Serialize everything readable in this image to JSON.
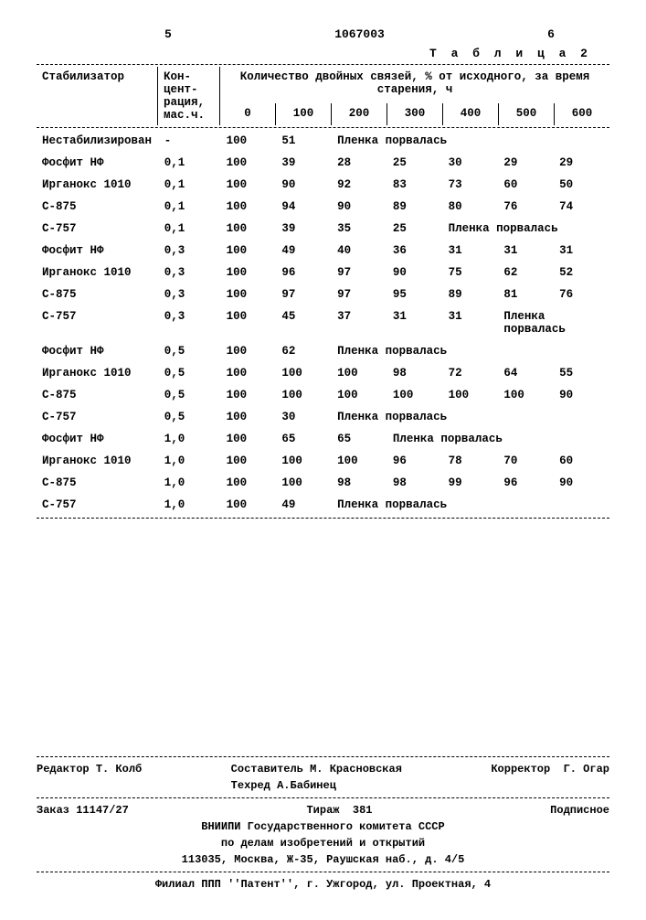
{
  "header": {
    "left_num": "5",
    "doc_num": "1067003",
    "right_num": "6",
    "table_label": "Т а б л и ц а  2"
  },
  "table": {
    "col_stabilizer": "Стабилизатор",
    "col_concentration": "Кон-\nцент-\nрация,\nмас.ч.",
    "col_main_heading": "Количество двойных связей, % от исходного, за время старения, ч",
    "time_cols": [
      "0",
      "100",
      "200",
      "300",
      "400",
      "500",
      "600"
    ],
    "rows": [
      {
        "name": "Нестабилизирован",
        "conc": "-",
        "vals": [
          "100",
          "51"
        ],
        "note": "Пленка порвалась",
        "note_span": 5
      },
      {
        "name": "Фосфит НФ",
        "conc": "0,1",
        "vals": [
          "100",
          "39",
          "28",
          "25",
          "30",
          "29",
          "29"
        ]
      },
      {
        "name": "Ирганокс 1010",
        "conc": "0,1",
        "vals": [
          "100",
          "90",
          "92",
          "83",
          "73",
          "60",
          "50"
        ]
      },
      {
        "name": "С-875",
        "conc": "0,1",
        "vals": [
          "100",
          "94",
          "90",
          "89",
          "80",
          "76",
          "74"
        ]
      },
      {
        "name": "С-757",
        "conc": "0,1",
        "vals": [
          "100",
          "39",
          "35",
          "25"
        ],
        "note": "Пленка порвалась",
        "note_span": 3
      },
      {
        "name": "Фосфит НФ",
        "conc": "0,3",
        "vals": [
          "100",
          "49",
          "40",
          "36",
          "31",
          "31",
          "31"
        ]
      },
      {
        "name": "Ирганокс 1010",
        "conc": "0,3",
        "vals": [
          "100",
          "96",
          "97",
          "90",
          "75",
          "62",
          "52"
        ]
      },
      {
        "name": "С-875",
        "conc": "0,3",
        "vals": [
          "100",
          "97",
          "97",
          "95",
          "89",
          "81",
          "76"
        ]
      },
      {
        "name": "С-757",
        "conc": "0,3",
        "vals": [
          "100",
          "45",
          "37",
          "31",
          "31"
        ],
        "note": "Пленка порвалась",
        "note_span": 2
      },
      {
        "name": "Фосфит НФ",
        "conc": "0,5",
        "vals": [
          "100",
          "62"
        ],
        "note": "Пленка порвалась",
        "note_span": 5
      },
      {
        "name": "Ирганокс 1010",
        "conc": "0,5",
        "vals": [
          "100",
          "100",
          "100",
          "98",
          "72",
          "64",
          "55"
        ]
      },
      {
        "name": "С-875",
        "conc": "0,5",
        "vals": [
          "100",
          "100",
          "100",
          "100",
          "100",
          "100",
          "90"
        ]
      },
      {
        "name": "С-757",
        "conc": "0,5",
        "vals": [
          "100",
          "30"
        ],
        "note": "Пленка порвалась",
        "note_span": 5
      },
      {
        "name": "Фосфит НФ",
        "conc": "1,0",
        "vals": [
          "100",
          "65",
          "65"
        ],
        "note": "Пленка порвалась",
        "note_span": 4
      },
      {
        "name": "Ирганокс 1010",
        "conc": "1,0",
        "vals": [
          "100",
          "100",
          "100",
          "96",
          "78",
          "70",
          "60"
        ]
      },
      {
        "name": "С-875",
        "conc": "1,0",
        "vals": [
          "100",
          "100",
          "98",
          "98",
          "99",
          "96",
          "90"
        ]
      },
      {
        "name": "С-757",
        "conc": "1,0",
        "vals": [
          "100",
          "49"
        ],
        "note": "Пленка порвалась",
        "note_span": 5
      }
    ]
  },
  "footer": {
    "editor_label": "Редактор",
    "editor_name": "Т. Колб",
    "compiler_label": "Составитель",
    "compiler_name": "М. Красновская",
    "techred_label": "Техред",
    "techred_name": "А.Бабинец",
    "corrector_label": "Корректор",
    "corrector_name": "Г. Огар",
    "order_label": "Заказ",
    "order_num": "11147/27",
    "tirazh_label": "Тираж",
    "tirazh_num": "381",
    "subscribe": "Подписное",
    "org1": "ВНИИПИ Государственного комитета СССР",
    "org2": "по делам изобретений и открытий",
    "addr1": "113035, Москва, Ж-35, Раушская наб., д. 4/5",
    "branch": "Филиал ППП ''Патент'', г. Ужгород, ул. Проектная, 4"
  }
}
